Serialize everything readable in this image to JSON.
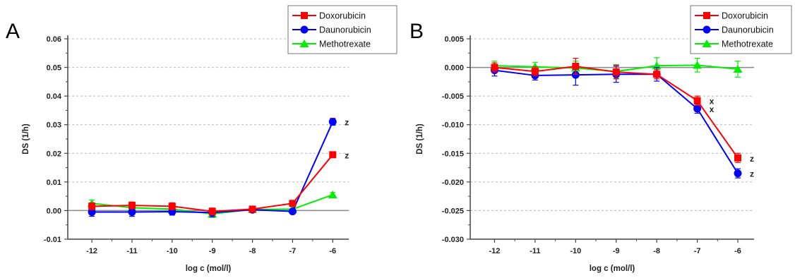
{
  "chart_data": [
    {
      "type": "line",
      "panel_label": "A",
      "xlabel": "log c (mol/l)",
      "ylabel": "DS (1/h)",
      "categories": [
        -12,
        -11,
        -10,
        -9,
        -8,
        -7,
        -6
      ],
      "x_tick_labels": [
        "-12",
        "-11",
        "-10",
        "-9",
        "-8",
        "-7",
        "-6"
      ],
      "xlim": [
        -12.6,
        -5.6
      ],
      "ylim": [
        -0.01,
        0.06
      ],
      "y_ticks": [
        -0.01,
        0.0,
        0.01,
        0.02,
        0.03,
        0.04,
        0.05,
        0.06
      ],
      "y_tick_labels": [
        "-0.01",
        "0.00",
        "0.01",
        "0.02",
        "0.03",
        "0.04",
        "0.05",
        "0.06"
      ],
      "grid": "horizontal-dashed",
      "legend_position": "top-right",
      "series": [
        {
          "name": "Doxorubicin",
          "marker": "square",
          "color": "#ff0000",
          "values": [
            0.0015,
            0.0018,
            0.0015,
            -0.0003,
            0.0005,
            0.0025,
            0.0195
          ],
          "errors": [
            0.0012,
            0.0012,
            0.0012,
            0.0012,
            0.0008,
            0.0008,
            0.0008
          ]
        },
        {
          "name": "Daunorubicin",
          "marker": "circle",
          "color": "#0000ff",
          "values": [
            -0.0005,
            -0.0005,
            -0.0004,
            -0.0007,
            0.0003,
            -0.0003,
            0.031
          ],
          "errors": [
            0.0015,
            0.0015,
            0.0012,
            0.0015,
            0.0008,
            0.0008,
            0.0012
          ]
        },
        {
          "name": "Methotrexate",
          "marker": "triangle",
          "color": "#00ee00",
          "values": [
            0.0025,
            0.001,
            0.0005,
            -0.0012,
            0.0004,
            0.0005,
            0.0055
          ],
          "errors": [
            0.0012,
            0.0012,
            0.001,
            0.0012,
            0.0008,
            0.0008,
            0.0008
          ]
        }
      ],
      "annotations": [
        {
          "text": "z",
          "x": -6,
          "y": 0.031
        },
        {
          "text": "z",
          "x": -6,
          "y": 0.0195
        }
      ]
    },
    {
      "type": "line",
      "panel_label": "B",
      "xlabel": "log c (mol/l)",
      "ylabel": "DS (1/h)",
      "categories": [
        -12,
        -11,
        -10,
        -9,
        -8,
        -7,
        -6
      ],
      "x_tick_labels": [
        "-12",
        "-11",
        "-10",
        "-9",
        "-8",
        "-7",
        "-6"
      ],
      "xlim": [
        -12.6,
        -5.6
      ],
      "ylim": [
        -0.03,
        0.005
      ],
      "y_ticks": [
        -0.03,
        -0.025,
        -0.02,
        -0.015,
        -0.01,
        -0.005,
        0.0,
        0.005
      ],
      "y_tick_labels": [
        "-0.030",
        "-0.025",
        "-0.020",
        "-0.015",
        "-0.010",
        "-0.005",
        "0.000",
        "0.005"
      ],
      "grid": "horizontal-dashed",
      "legend_position": "top-right",
      "series": [
        {
          "name": "Doxorubicin",
          "marker": "square",
          "color": "#ff0000",
          "values": [
            0.0,
            -0.0007,
            0.0002,
            -0.0008,
            -0.0012,
            -0.0058,
            -0.0158
          ],
          "errors": [
            0.0008,
            0.0008,
            0.0014,
            0.0012,
            0.0008,
            0.0008,
            0.0008
          ]
        },
        {
          "name": "Daunorubicin",
          "marker": "circle",
          "color": "#0000ff",
          "values": [
            -0.0005,
            -0.0014,
            -0.0013,
            -0.0012,
            -0.0012,
            -0.0072,
            -0.0185
          ],
          "errors": [
            0.001,
            0.0008,
            0.0018,
            0.0014,
            0.0012,
            0.0008,
            0.0008
          ]
        },
        {
          "name": "Methotrexate",
          "marker": "triangle",
          "color": "#00ee00",
          "values": [
            0.0003,
            0.0001,
            -0.0001,
            -0.0007,
            0.0003,
            0.0004,
            -0.0003
          ],
          "errors": [
            0.0008,
            0.0008,
            0.0012,
            0.0012,
            0.0014,
            0.0012,
            0.0014
          ]
        }
      ],
      "annotations": [
        {
          "text": "x",
          "x": -7,
          "y": -0.0058
        },
        {
          "text": "x",
          "x": -7,
          "y": -0.0072
        },
        {
          "text": "z",
          "x": -6,
          "y": -0.0158
        },
        {
          "text": "z",
          "x": -6,
          "y": -0.0185
        }
      ]
    }
  ]
}
